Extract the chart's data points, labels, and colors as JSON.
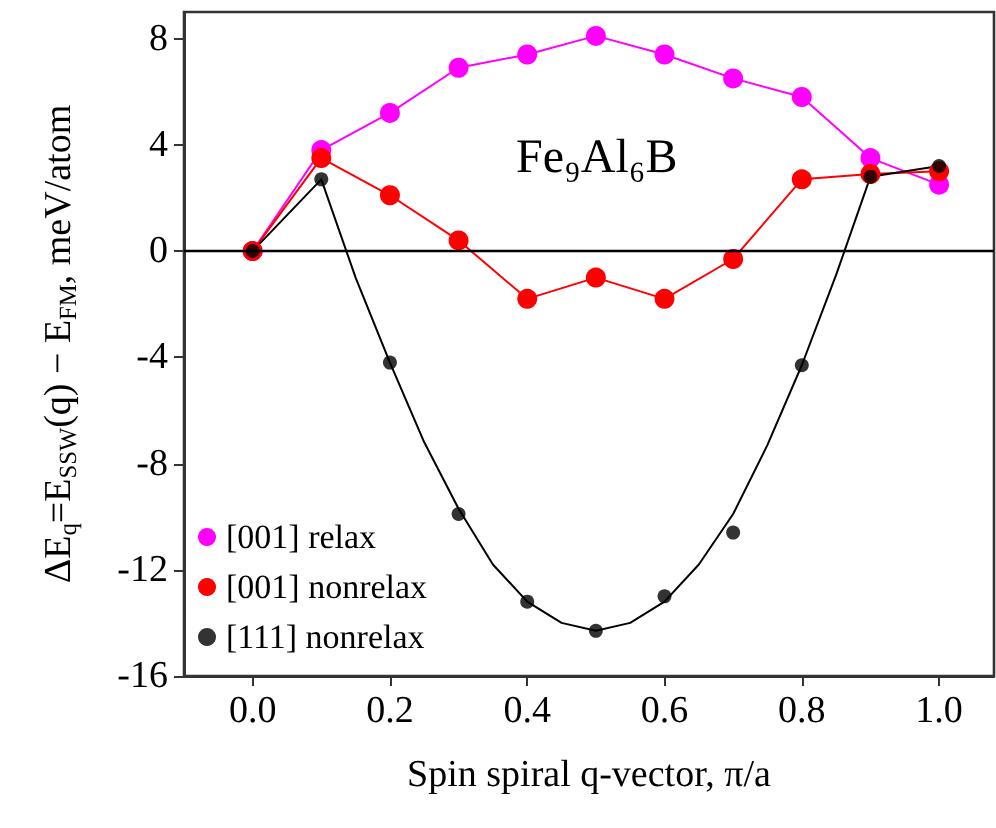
{
  "chart_data": {
    "type": "line",
    "xlabel": "Spin spiral q-vector, π/a",
    "ylabel": "ΔE$_{q}$=E$_{SSW}$(q) − E$_{FM}$, meV/atom",
    "annotations": [
      "Fe₉Al₆B"
    ],
    "x": [
      0,
      0.1,
      0.2,
      0.3,
      0.4,
      0.5,
      0.6,
      0.7,
      0.8,
      0.9,
      1.0
    ],
    "xlim": [
      -0.1,
      1.08
    ],
    "xticks": [
      {
        "value": 0,
        "label": "0.0"
      },
      {
        "value": 0.2,
        "label": "0.2"
      },
      {
        "value": 0.4,
        "label": "0.4"
      },
      {
        "value": 0.6,
        "label": "0.6"
      },
      {
        "value": 0.8,
        "label": "0.8"
      },
      {
        "value": 1,
        "label": "1.0"
      }
    ],
    "ylim": [
      -16,
      9
    ],
    "yticks": [
      -16,
      -12,
      -8,
      -4,
      0,
      4,
      8
    ],
    "marker": "circle",
    "line_style": "solid",
    "grid": false,
    "legend": "bottom left",
    "ref_lines": [
      {
        "axis": "y",
        "value": 0,
        "label": null,
        "color": "#000000"
      }
    ],
    "series": [
      {
        "name": "[001] relax",
        "color": "#ff00ff",
        "values": [
          0,
          3.8,
          5.2,
          6.9,
          7.4,
          8.1,
          7.4,
          6.5,
          5.8,
          3.5,
          2.5
        ]
      },
      {
        "name": "[001] nonrelax",
        "color": "#ff0000",
        "values": [
          0,
          3.5,
          2.1,
          0.4,
          -1.8,
          -1.0,
          -1.8,
          -0.3,
          2.7,
          2.9,
          3.0
        ]
      },
      {
        "name": "[111] nonrelax",
        "type": "scatter",
        "color": "#000000",
        "values": [
          0,
          2.7,
          -4.2,
          -9.9,
          -13.2,
          -14.3,
          -13.0,
          -10.6,
          -4.3,
          2.8,
          3.2
        ]
      },
      {
        "type": "line",
        "color": "#000000",
        "marker": "none",
        "x": [
          0,
          0.1,
          0.15,
          0.2,
          0.25,
          0.3,
          0.35,
          0.4,
          0.45,
          0.5,
          0.55,
          0.6,
          0.65,
          0.7,
          0.75,
          0.8,
          0.85,
          0.9,
          1.0
        ],
        "values": [
          0,
          2.7,
          -1.0,
          -4.2,
          -7.2,
          -9.7,
          -11.8,
          -13.2,
          -14.0,
          -14.3,
          -14.0,
          -13.2,
          -11.8,
          -9.9,
          -7.3,
          -4.3,
          -0.9,
          2.8,
          3.2
        ]
      }
    ]
  }
}
